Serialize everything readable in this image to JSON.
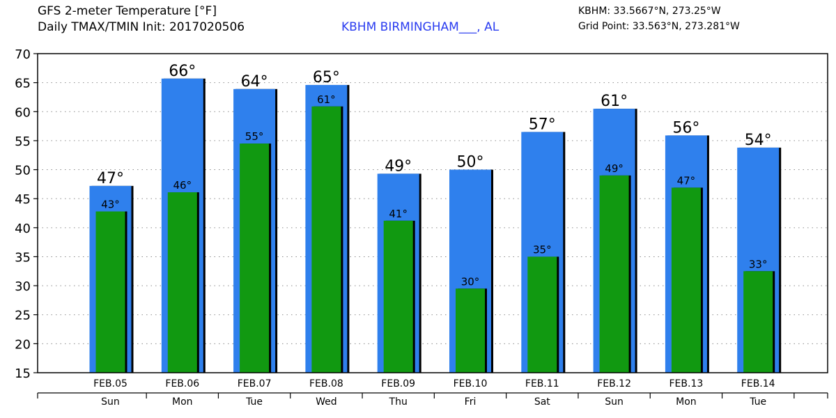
{
  "header": {
    "title_line1": "GFS 2-meter Temperature [°F]",
    "title_line2": "Daily TMAX/TMIN Init: 2017020506",
    "station": "KBHM BIRMINGHAM___, AL",
    "location_line1": "KBHM: 33.5667°N, 273.25°W",
    "location_line2": "Grid Point: 33.563°N, 273.281°W"
  },
  "chart_data": {
    "type": "bar",
    "categories": [
      "FEB.05",
      "FEB.06",
      "FEB.07",
      "FEB.08",
      "FEB.09",
      "FEB.10",
      "FEB.11",
      "FEB.12",
      "FEB.13",
      "FEB.14"
    ],
    "day_labels": [
      "Sun",
      "Mon",
      "Tue",
      "Wed",
      "Thu",
      "Fri",
      "Sat",
      "Sun",
      "Mon",
      "Tue"
    ],
    "series": [
      {
        "name": "TMAX",
        "values": [
          47.2,
          65.7,
          63.9,
          64.6,
          49.3,
          50.0,
          56.5,
          60.5,
          55.9,
          53.8
        ],
        "labels": [
          "47°",
          "66°",
          "64°",
          "65°",
          "49°",
          "50°",
          "57°",
          "61°",
          "56°",
          "54°"
        ],
        "color": "#2f80ed"
      },
      {
        "name": "TMIN",
        "values": [
          42.8,
          46.1,
          54.5,
          60.9,
          41.2,
          29.5,
          35.0,
          49.0,
          46.9,
          32.5
        ],
        "labels": [
          "43°",
          "46°",
          "55°",
          "61°",
          "41°",
          "30°",
          "35°",
          "49°",
          "47°",
          "33°"
        ],
        "color": "#119911"
      }
    ],
    "ylim": [
      15,
      70
    ],
    "yticks": [
      15,
      20,
      25,
      30,
      35,
      40,
      45,
      50,
      55,
      60,
      65,
      70
    ],
    "grid": true
  }
}
